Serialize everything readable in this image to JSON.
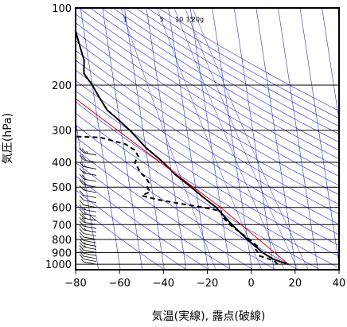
{
  "chart_data": {
    "type": "line",
    "title": "",
    "xlabel": "気温(実線), 露点(破線)",
    "ylabel": "気圧(hPa)",
    "x_axis": {
      "min": -80,
      "max": 40,
      "ticks": [
        -80,
        -60,
        -40,
        -20,
        0,
        20,
        40
      ],
      "tick_labels": [
        "−80",
        "−60",
        "−40",
        "−20",
        "0",
        "20",
        "40"
      ]
    },
    "y_axis": {
      "scale": "log",
      "min": 100,
      "max": 1050,
      "ticks": [
        100,
        200,
        300,
        400,
        500,
        600,
        700,
        800,
        900,
        1000
      ],
      "tick_labels": [
        "100",
        "200",
        "300",
        "400",
        "500",
        "600",
        "700",
        "800",
        "900",
        "1000"
      ]
    },
    "skew_per_decade": 49,
    "mixing_ratio_labels": [
      {
        "text": "1",
        "w": 1
      },
      {
        "text": "5",
        "w": 5
      },
      {
        "text": "10",
        "w": 10
      },
      {
        "text": "15",
        "w": 15
      },
      {
        "text": "20g",
        "w": 20
      }
    ],
    "series": [
      {
        "style": "solid",
        "color": "#000000",
        "points": [
          [
            1000,
            17
          ],
          [
            975,
            13
          ],
          [
            950,
            10
          ],
          [
            925,
            8
          ],
          [
            900,
            6
          ],
          [
            850,
            3
          ],
          [
            800,
            0
          ],
          [
            750,
            -3
          ],
          [
            700,
            -6
          ],
          [
            650,
            -9
          ],
          [
            600,
            -12
          ],
          [
            550,
            -17
          ],
          [
            500,
            -22
          ],
          [
            450,
            -28
          ],
          [
            400,
            -33
          ],
          [
            350,
            -40
          ],
          [
            300,
            -46
          ],
          [
            270,
            -51
          ],
          [
            250,
            -55
          ],
          [
            220,
            -58
          ],
          [
            200,
            -60
          ],
          [
            180,
            -63
          ],
          [
            160,
            -62
          ],
          [
            140,
            -63
          ],
          [
            120,
            -64
          ],
          [
            110,
            -65
          ],
          [
            100,
            -65
          ]
        ]
      },
      {
        "style": "dashed",
        "color": "#000000",
        "points": [
          [
            1000,
            12
          ],
          [
            975,
            11
          ],
          [
            950,
            8
          ],
          [
            925,
            4
          ],
          [
            900,
            4
          ],
          [
            875,
            3
          ],
          [
            850,
            4
          ],
          [
            800,
            1
          ],
          [
            750,
            -3
          ],
          [
            700,
            -7
          ],
          [
            650,
            -10
          ],
          [
            620,
            -10
          ],
          [
            600,
            -18
          ],
          [
            580,
            -28
          ],
          [
            560,
            -38
          ],
          [
            540,
            -45
          ],
          [
            520,
            -41
          ],
          [
            500,
            -42
          ],
          [
            480,
            -41
          ],
          [
            460,
            -42
          ],
          [
            440,
            -44
          ],
          [
            420,
            -45
          ],
          [
            400,
            -46
          ],
          [
            380,
            -44
          ],
          [
            360,
            -45
          ],
          [
            340,
            -49
          ],
          [
            320,
            -60
          ],
          [
            315,
            -82
          ]
        ]
      },
      {
        "style": "solid",
        "color": "#e00000",
        "points": [
          [
            1000,
            17
          ],
          [
            600,
            -10
          ],
          [
            190,
            -79
          ]
        ]
      }
    ],
    "wind_barbs": {
      "levels_hPa": [
        1000,
        975,
        950,
        925,
        900,
        875,
        850,
        825,
        800,
        775,
        750,
        725,
        700,
        675,
        650,
        625,
        600,
        575,
        550,
        525,
        500,
        475,
        450,
        425,
        400,
        375
      ],
      "speeds": [
        5,
        10,
        10,
        10,
        10,
        15,
        15,
        10,
        10,
        10,
        15,
        15,
        20,
        20,
        15,
        15,
        10,
        10,
        10,
        15,
        20,
        20,
        15,
        15,
        20,
        25
      ]
    },
    "grid": true,
    "legend": "none"
  }
}
